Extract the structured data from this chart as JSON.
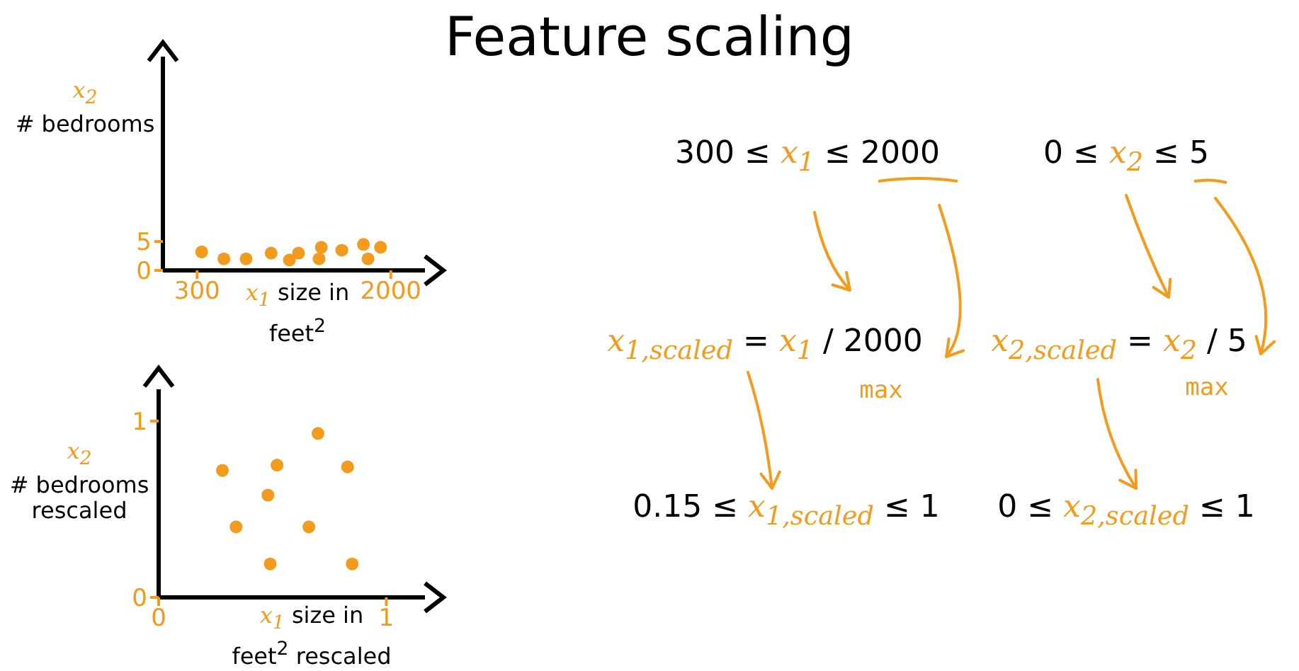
{
  "chart_data": [
    {
      "type": "scatter",
      "xlabel": "x$_{1}$ size in\nfeet$^{2}$",
      "ylabel": "x$_{2}$\n# bedrooms",
      "xlim": [
        0,
        2300
      ],
      "xticks": [
        300,
        2000
      ],
      "ylim": [
        0,
        37
      ],
      "yticks": [
        0,
        5
      ],
      "marker": "circle",
      "x": [
        340,
        535,
        730,
        950,
        1110,
        1190,
        1370,
        1390,
        1570,
        1760,
        1800,
        1910
      ],
      "series": [
        {
          "color": "#f29b1d",
          "values": [
            3.2,
            2,
            2,
            3,
            1.8,
            3,
            2,
            4,
            3.5,
            4.5,
            2,
            4
          ]
        }
      ]
    },
    {
      "type": "scatter",
      "xlabel": "x$_{1}$ size in\nfeet$^{2}$ rescaled",
      "ylabel": "x$_{2}$\n# bedrooms\nrescaled",
      "xlim": [
        0,
        1.17
      ],
      "xticks": [
        0,
        1
      ],
      "ylim": [
        0,
        1.18
      ],
      "yticks": [
        0,
        1
      ],
      "marker": "circle",
      "x": [
        0.28,
        0.52,
        0.7,
        0.83,
        0.48,
        0.34,
        0.66,
        0.49,
        0.85
      ],
      "series": [
        {
          "color": "#f29b1d",
          "values": [
            0.72,
            0.75,
            0.93,
            0.74,
            0.58,
            0.4,
            0.4,
            0.19,
            0.19
          ]
        }
      ]
    },
    {
      "type": "other",
      "title": "Feature scaling",
      "annotations": [
        "300 ≤ x$_{1}$ ≤ 2000",
        "0 ≤ x$_{2}$ ≤ 5",
        "x$_{1,scaled}$ = x$_{1}$ / 2000",
        "max",
        "x$_{2,scaled}$ = x$_{2}$ / 5",
        "max",
        "0.15 ≤ x$_{1,scaled}$ ≤ 1",
        "0 ≤ x$_{2,scaled}$ ≤ 1"
      ]
    }
  ]
}
